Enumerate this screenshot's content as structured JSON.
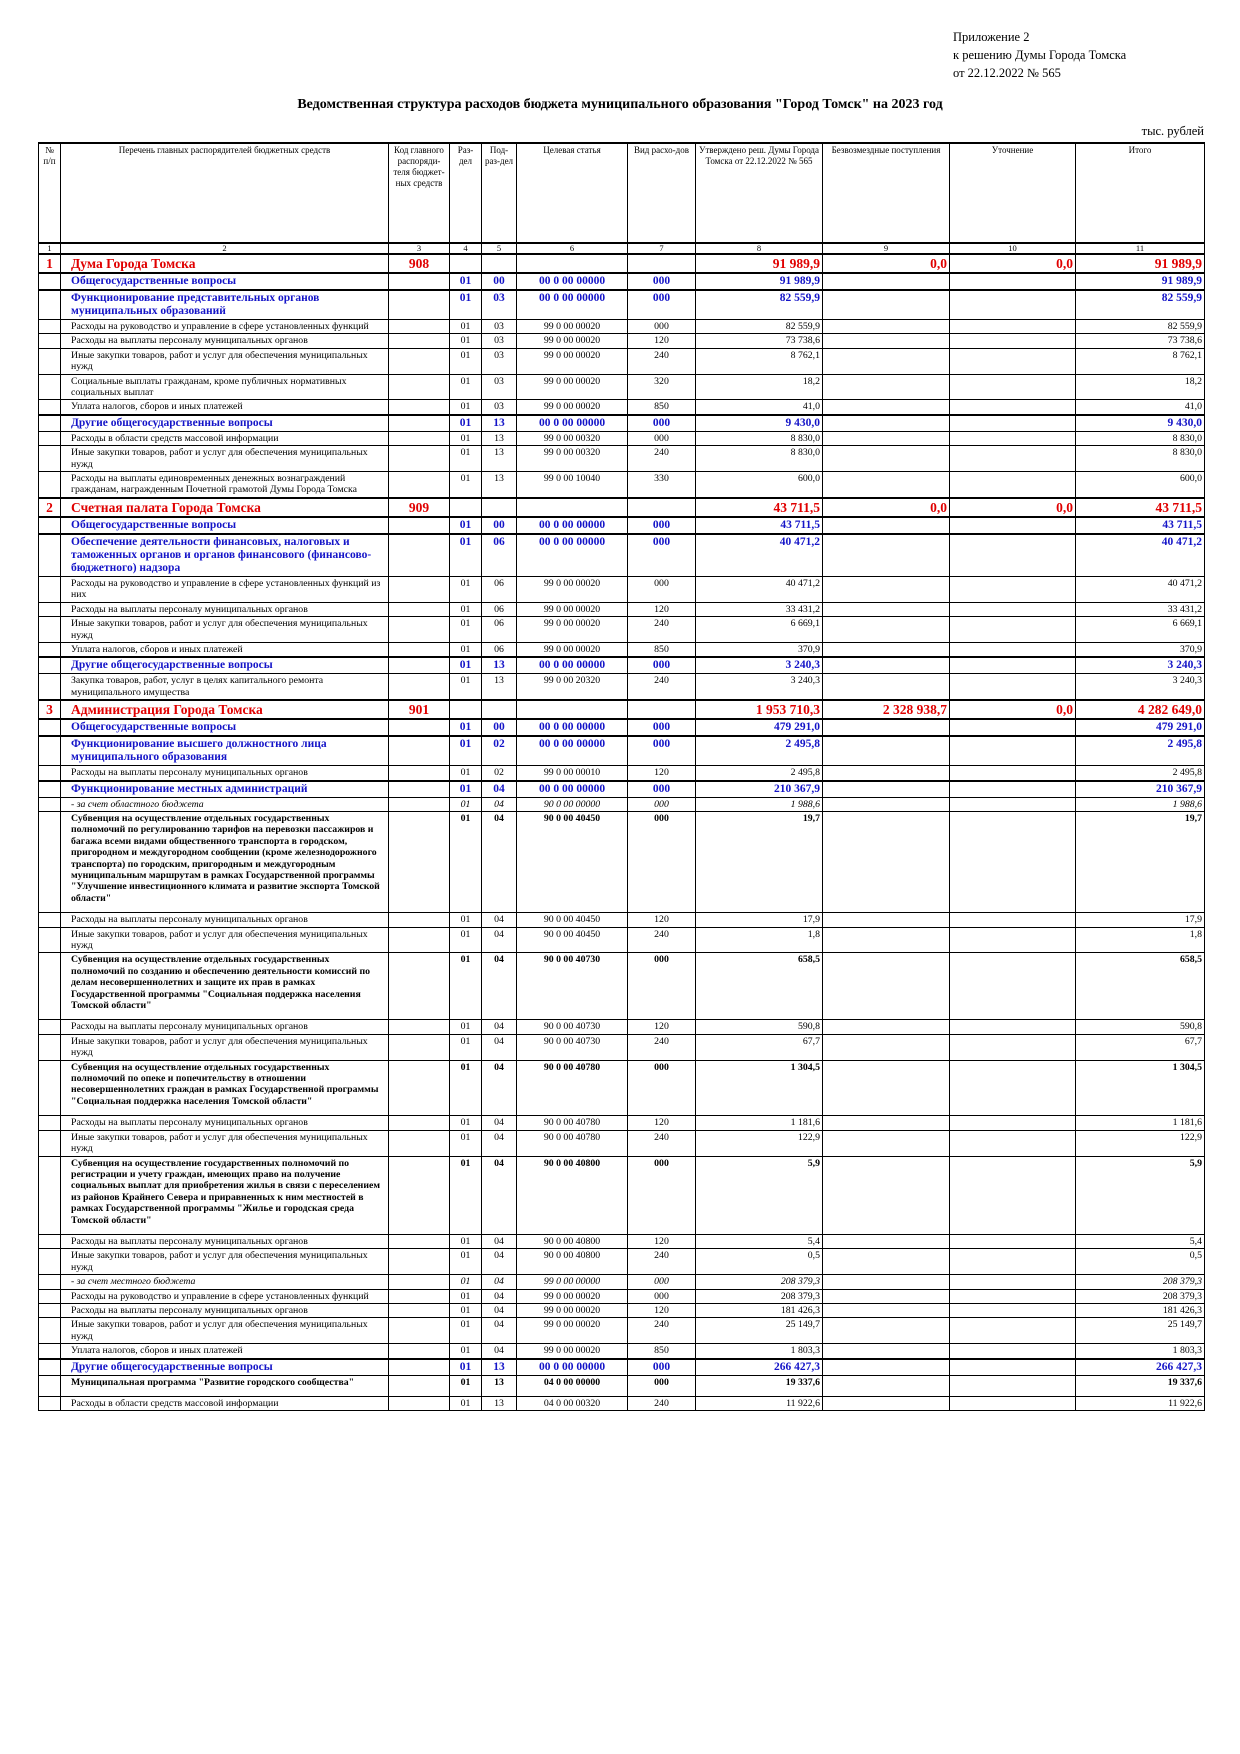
{
  "header": {
    "appendix": [
      "Приложение 2",
      "к решению Думы Города Томска",
      "от 22.12.2022 № 565"
    ],
    "title": "Ведомственная структура расходов бюджета муниципального образования \"Город Томск\" на 2023 год",
    "unit": "тыс. рублей"
  },
  "table": {
    "header": [
      "№ п/п",
      "Перечень главных распорядителей бюджетных средств",
      "Код главного распоряди-теля бюджет-ных средств",
      "Раз-дел",
      "Под-раз-дел",
      "Целевая статья",
      "Вид расхо-дов",
      "Утверждено реш. Думы Города Томска от 22.12.2022 № 565",
      "Безвозмездные поступления",
      "Уточнение",
      "Итого"
    ],
    "numbers": [
      "1",
      "2",
      "3",
      "4",
      "5",
      "6",
      "7",
      "8",
      "9",
      "10",
      "11"
    ],
    "rows": [
      {
        "style": "org",
        "cells": [
          "1",
          "Дума Города Томска",
          "908",
          null,
          null,
          null,
          null,
          "91 989,9",
          "0,0",
          "0,0",
          "91 989,9"
        ]
      },
      {
        "style": "section",
        "cells": [
          null,
          "Общегосударственные вопросы",
          null,
          "01",
          "00",
          "00 0 00 00000",
          "000",
          "91 989,9",
          null,
          null,
          "91 989,9"
        ]
      },
      {
        "style": "section",
        "cells": [
          null,
          "Функционирование представительных органов муниципальных образований",
          null,
          "01",
          "03",
          "00 0 00 00000",
          "000",
          "82 559,9",
          null,
          null,
          "82 559,9"
        ]
      },
      {
        "style": "item",
        "cells": [
          null,
          "Расходы на руководство и управление в сфере установленных функций",
          null,
          "01",
          "03",
          "99 0 00 00020",
          "000",
          "82 559,9",
          null,
          null,
          "82 559,9"
        ]
      },
      {
        "style": "item",
        "cells": [
          null,
          "Расходы на выплаты персоналу муниципальных органов",
          null,
          "01",
          "03",
          "99 0 00 00020",
          "120",
          "73 738,6",
          null,
          null,
          "73 738,6"
        ]
      },
      {
        "style": "item",
        "cells": [
          null,
          "Иные закупки товаров, работ и услуг для обеспечения муниципальных нужд",
          null,
          "01",
          "03",
          "99 0 00 00020",
          "240",
          "8 762,1",
          null,
          null,
          "8 762,1"
        ]
      },
      {
        "style": "item",
        "cells": [
          null,
          "Социальные выплаты гражданам, кроме публичных нормативных социальных выплат",
          null,
          "01",
          "03",
          "99 0 00 00020",
          "320",
          "18,2",
          null,
          null,
          "18,2"
        ]
      },
      {
        "style": "item",
        "cells": [
          null,
          "Уплата налогов, сборов и иных платежей",
          null,
          "01",
          "03",
          "99 0 00 00020",
          "850",
          "41,0",
          null,
          null,
          "41,0"
        ]
      },
      {
        "style": "section",
        "cells": [
          null,
          "Другие общегосударственные вопросы",
          null,
          "01",
          "13",
          "00 0 00 00000",
          "000",
          "9 430,0",
          null,
          null,
          "9 430,0"
        ]
      },
      {
        "style": "item",
        "cells": [
          null,
          "Расходы в области средств массовой информации",
          null,
          "01",
          "13",
          "99 0 00 00320",
          "000",
          "8 830,0",
          null,
          null,
          "8 830,0"
        ]
      },
      {
        "style": "item",
        "cells": [
          null,
          "Иные закупки товаров, работ и услуг для обеспечения муниципальных нужд",
          null,
          "01",
          "13",
          "99 0 00 00320",
          "240",
          "8 830,0",
          null,
          null,
          "8 830,0"
        ]
      },
      {
        "style": "item",
        "cells": [
          null,
          "Расходы на выплаты единовременных денежных вознаграждений гражданам, награжденным Почетной грамотой Думы Города Томска",
          null,
          "01",
          "13",
          "99 0 00 10040",
          "330",
          "600,0",
          null,
          null,
          "600,0"
        ]
      },
      {
        "style": "org",
        "cells": [
          "2",
          "Счетная палата Города Томска",
          "909",
          null,
          null,
          null,
          null,
          "43 711,5",
          "0,0",
          "0,0",
          "43 711,5"
        ]
      },
      {
        "style": "section",
        "cells": [
          null,
          "Общегосударственные вопросы",
          null,
          "01",
          "00",
          "00 0 00 00000",
          "000",
          "43 711,5",
          null,
          null,
          "43 711,5"
        ]
      },
      {
        "style": "section",
        "cells": [
          null,
          "Обеспечение деятельности финансовых, налоговых и таможенных органов и органов финансового (финансово-бюджетного) надзора",
          null,
          "01",
          "06",
          "00 0 00 00000",
          "000",
          "40 471,2",
          null,
          null,
          "40 471,2"
        ]
      },
      {
        "style": "item",
        "cells": [
          null,
          "Расходы на руководство и управление в сфере установленных функций из них",
          null,
          "01",
          "06",
          "99 0 00 00020",
          "000",
          "40 471,2",
          null,
          null,
          "40 471,2"
        ]
      },
      {
        "style": "item",
        "cells": [
          null,
          "Расходы на выплаты персоналу муниципальных органов",
          null,
          "01",
          "06",
          "99 0 00 00020",
          "120",
          "33 431,2",
          null,
          null,
          "33 431,2"
        ]
      },
      {
        "style": "item",
        "cells": [
          null,
          "Иные закупки товаров, работ и услуг для обеспечения муниципальных нужд",
          null,
          "01",
          "06",
          "99 0 00 00020",
          "240",
          "6 669,1",
          null,
          null,
          "6 669,1"
        ]
      },
      {
        "style": "item",
        "cells": [
          null,
          "Уплата налогов, сборов и иных платежей",
          null,
          "01",
          "06",
          "99 0 00 00020",
          "850",
          "370,9",
          null,
          null,
          "370,9"
        ]
      },
      {
        "style": "section",
        "cells": [
          null,
          "Другие общегосударственные вопросы",
          null,
          "01",
          "13",
          "00 0 00 00000",
          "000",
          "3 240,3",
          null,
          null,
          "3 240,3"
        ]
      },
      {
        "style": "item",
        "cells": [
          null,
          "Закупка товаров, работ, услуг в целях капитального ремонта муниципального имущества",
          null,
          "01",
          "13",
          "99 0 00 20320",
          "240",
          "3 240,3",
          null,
          null,
          "3 240,3"
        ]
      },
      {
        "style": "org",
        "cells": [
          "3",
          "Администрация Города Томска",
          "901",
          null,
          null,
          null,
          null,
          "1 953 710,3",
          "2 328 938,7",
          "0,0",
          "4 282 649,0"
        ]
      },
      {
        "style": "section",
        "cells": [
          null,
          "Общегосударственные вопросы",
          null,
          "01",
          "00",
          "00 0 00 00000",
          "000",
          "479 291,0",
          null,
          null,
          "479 291,0"
        ]
      },
      {
        "style": "section",
        "cells": [
          null,
          "Функционирование высшего должностного лица муниципального образования",
          null,
          "01",
          "02",
          "00 0 00 00000",
          "000",
          "2 495,8",
          null,
          null,
          "2 495,8"
        ]
      },
      {
        "style": "item",
        "cells": [
          null,
          "Расходы на выплаты персоналу муниципальных органов",
          null,
          "01",
          "02",
          "99 0 00 00010",
          "120",
          "2 495,8",
          null,
          null,
          "2 495,8"
        ]
      },
      {
        "style": "section",
        "cells": [
          null,
          "Функционирование местных администраций",
          null,
          "01",
          "04",
          "00 0 00 00000",
          "000",
          "210 367,9",
          null,
          null,
          "210 367,9"
        ]
      },
      {
        "style": "italic",
        "cells": [
          null,
          "- за счет областного бюджета",
          null,
          "01",
          "04",
          "90 0 00 00000",
          "000",
          "1 988,6",
          null,
          null,
          "1 988,6"
        ]
      },
      {
        "style": "bold",
        "cells": [
          null,
          "Субвенция на осуществление отдельных государственных полномочий по регулированию тарифов на перевозки пассажиров и багажа всеми видами общественного транспорта в городском, пригородном и междугородном сообщении (кроме железнодорожного транспорта) по городским, пригородным и междугородным муниципальным маршрутам в рамках Государственной программы \"Улучшение инвестиционного климата и развитие экспорта Томской области\"",
          null,
          "01",
          "04",
          "90 0 00 40450",
          "000",
          "19,7",
          null,
          null,
          "19,7"
        ]
      },
      {
        "style": "item",
        "cells": [
          null,
          "Расходы на выплаты персоналу муниципальных органов",
          null,
          "01",
          "04",
          "90 0 00 40450",
          "120",
          "17,9",
          null,
          null,
          "17,9"
        ]
      },
      {
        "style": "item",
        "cells": [
          null,
          "Иные закупки товаров, работ и услуг для обеспечения муниципальных нужд",
          null,
          "01",
          "04",
          "90 0 00 40450",
          "240",
          "1,8",
          null,
          null,
          "1,8"
        ]
      },
      {
        "style": "bold",
        "cells": [
          null,
          "Субвенция на осуществление отдельных государственных полномочий по созданию и обеспечению деятельности комиссий по делам несовершеннолетних и защите их прав в рамках Государственной программы \"Социальная поддержка населения Томской области\"",
          null,
          "01",
          "04",
          "90 0 00 40730",
          "000",
          "658,5",
          null,
          null,
          "658,5"
        ]
      },
      {
        "style": "item",
        "cells": [
          null,
          "Расходы на выплаты персоналу муниципальных органов",
          null,
          "01",
          "04",
          "90 0 00 40730",
          "120",
          "590,8",
          null,
          null,
          "590,8"
        ]
      },
      {
        "style": "item",
        "cells": [
          null,
          "Иные закупки товаров, работ и услуг для обеспечения муниципальных нужд",
          null,
          "01",
          "04",
          "90 0 00 40730",
          "240",
          "67,7",
          null,
          null,
          "67,7"
        ]
      },
      {
        "style": "bold",
        "cells": [
          null,
          "Субвенция на осуществление отдельных государственных полномочий по опеке и попечительству в отношении несовершеннолетних граждан в рамках Государственной программы \"Социальная поддержка населения Томской области\"",
          null,
          "01",
          "04",
          "90 0 00 40780",
          "000",
          "1 304,5",
          null,
          null,
          "1 304,5"
        ]
      },
      {
        "style": "item",
        "cells": [
          null,
          "Расходы на выплаты персоналу муниципальных органов",
          null,
          "01",
          "04",
          "90 0 00 40780",
          "120",
          "1 181,6",
          null,
          null,
          "1 181,6"
        ]
      },
      {
        "style": "item",
        "cells": [
          null,
          "Иные закупки товаров, работ и услуг для обеспечения муниципальных нужд",
          null,
          "01",
          "04",
          "90 0 00 40780",
          "240",
          "122,9",
          null,
          null,
          "122,9"
        ]
      },
      {
        "style": "bold",
        "cells": [
          null,
          "Субвенция на осуществление государственных полномочий по регистрации и учету граждан, имеющих право на получение социальных выплат для приобретения жилья в связи с переселением из районов Крайнего Севера и приравненных к ним местностей в рамках Государственной программы \"Жилье и городская среда Томской области\"",
          null,
          "01",
          "04",
          "90 0 00 40800",
          "000",
          "5,9",
          null,
          null,
          "5,9"
        ]
      },
      {
        "style": "item",
        "cells": [
          null,
          "Расходы на выплаты персоналу муниципальных органов",
          null,
          "01",
          "04",
          "90 0 00 40800",
          "120",
          "5,4",
          null,
          null,
          "5,4"
        ]
      },
      {
        "style": "item",
        "cells": [
          null,
          "Иные закупки товаров, работ и услуг для обеспечения муниципальных нужд",
          null,
          "01",
          "04",
          "90 0 00 40800",
          "240",
          "0,5",
          null,
          null,
          "0,5"
        ]
      },
      {
        "style": "italic",
        "cells": [
          null,
          "- за счет местного бюджета",
          null,
          "01",
          "04",
          "99 0 00 00000",
          "000",
          "208 379,3",
          null,
          null,
          "208 379,3"
        ]
      },
      {
        "style": "item",
        "cells": [
          null,
          "Расходы на руководство и управление в сфере установленных функций",
          null,
          "01",
          "04",
          "99 0 00 00020",
          "000",
          "208 379,3",
          null,
          null,
          "208 379,3"
        ]
      },
      {
        "style": "item",
        "cells": [
          null,
          "Расходы на выплаты персоналу муниципальных органов",
          null,
          "01",
          "04",
          "99 0 00 00020",
          "120",
          "181 426,3",
          null,
          null,
          "181 426,3"
        ]
      },
      {
        "style": "item",
        "cells": [
          null,
          "Иные закупки товаров, работ и услуг для обеспечения муниципальных нужд",
          null,
          "01",
          "04",
          "99 0 00 00020",
          "240",
          "25 149,7",
          null,
          null,
          "25 149,7"
        ]
      },
      {
        "style": "item",
        "cells": [
          null,
          "Уплата налогов, сборов и иных платежей",
          null,
          "01",
          "04",
          "99 0 00 00020",
          "850",
          "1 803,3",
          null,
          null,
          "1 803,3"
        ]
      },
      {
        "style": "section",
        "cells": [
          null,
          "Другие общегосударственные вопросы",
          null,
          "01",
          "13",
          "00 0 00 00000",
          "000",
          "266 427,3",
          null,
          null,
          "266 427,3"
        ]
      },
      {
        "style": "bold",
        "cells": [
          null,
          "Муниципальная программа \"Развитие городского сообщества\"",
          null,
          "01",
          "13",
          "04 0 00 00000",
          "000",
          "19 337,6",
          null,
          null,
          "19 337,6"
        ]
      },
      {
        "style": "item",
        "cells": [
          null,
          "Расходы в области средств массовой информации",
          null,
          "01",
          "13",
          "04 0 00 00320",
          "240",
          "11 922,6",
          null,
          null,
          "11 922,6"
        ]
      }
    ]
  }
}
